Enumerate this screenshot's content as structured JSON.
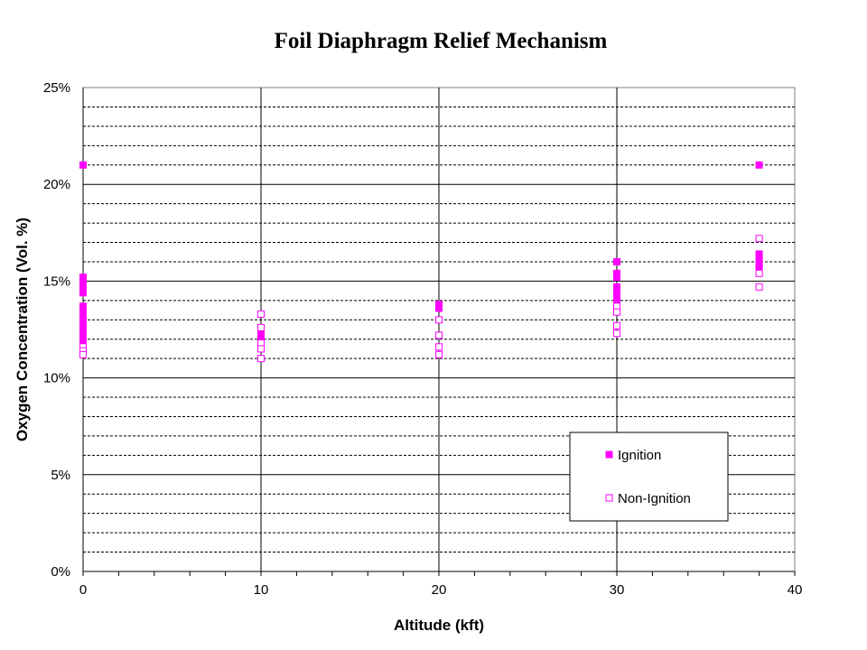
{
  "chart_data": {
    "type": "scatter",
    "title": "Foil Diaphragm Relief Mechanism",
    "xlabel": "Altitude (kft)",
    "ylabel": "Oxygen Concentration (Vol. %)",
    "xlim": [
      0,
      40
    ],
    "ylim": [
      0,
      25
    ],
    "x_ticks": [
      "0",
      "10",
      "20",
      "30",
      "40"
    ],
    "y_ticks": [
      "0%",
      "5%",
      "10%",
      "15%",
      "20%",
      "25%"
    ],
    "grid": true,
    "legend_position": "bottom-right",
    "series": [
      {
        "name": "Ignition",
        "marker": "filled-square",
        "color": "#ff00ff",
        "points": [
          [
            0,
            21.0
          ],
          [
            0,
            15.2
          ],
          [
            0,
            14.9
          ],
          [
            0,
            14.6
          ],
          [
            0,
            14.4
          ],
          [
            0,
            13.7
          ],
          [
            0,
            13.4
          ],
          [
            0,
            13.1
          ],
          [
            0,
            12.8
          ],
          [
            0,
            12.5
          ],
          [
            0,
            12.2
          ],
          [
            0,
            11.9
          ],
          [
            10,
            12.4
          ],
          [
            10,
            12.1
          ],
          [
            20,
            13.8
          ],
          [
            20,
            13.6
          ],
          [
            30,
            16.0
          ],
          [
            30,
            15.4
          ],
          [
            30,
            15.2
          ],
          [
            30,
            14.7
          ],
          [
            30,
            14.4
          ],
          [
            30,
            14.1
          ],
          [
            30,
            13.8
          ],
          [
            38,
            21.0
          ],
          [
            38,
            16.4
          ],
          [
            38,
            16.2
          ],
          [
            38,
            15.9
          ],
          [
            38,
            15.7
          ]
        ]
      },
      {
        "name": "Non-Ignition",
        "marker": "hollow-square",
        "color": "#ff00ff",
        "points": [
          [
            0,
            11.6
          ],
          [
            0,
            11.4
          ],
          [
            0,
            11.2
          ],
          [
            10,
            13.3
          ],
          [
            10,
            12.6
          ],
          [
            10,
            11.8
          ],
          [
            10,
            11.5
          ],
          [
            10,
            11.0
          ],
          [
            20,
            13.0
          ],
          [
            20,
            12.2
          ],
          [
            20,
            11.6
          ],
          [
            20,
            11.2
          ],
          [
            30,
            13.7
          ],
          [
            30,
            13.4
          ],
          [
            30,
            12.7
          ],
          [
            30,
            12.3
          ],
          [
            38,
            17.2
          ],
          [
            38,
            15.4
          ],
          [
            38,
            14.7
          ]
        ]
      }
    ]
  }
}
